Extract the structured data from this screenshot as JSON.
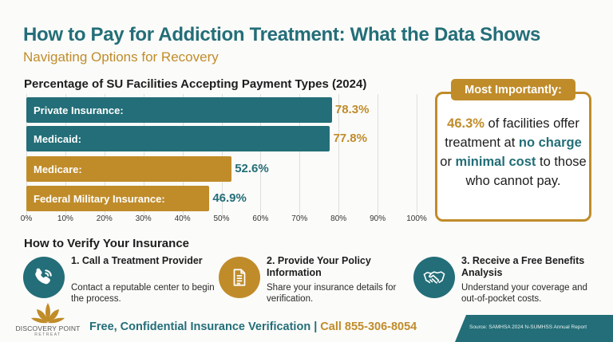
{
  "header": {
    "title": "How to Pay for Addiction Treatment: What the Data Shows",
    "subtitle": "Navigating Options for Recovery"
  },
  "chart_data": {
    "type": "bar",
    "orientation": "horizontal",
    "title": "Percentage of SU Facilities Accepting Payment Types (2024)",
    "categories": [
      "Private Insurance:",
      "Medicaid:",
      "Medicare:",
      "Federal Military Insurance:"
    ],
    "values": [
      78.3,
      77.8,
      52.6,
      46.9
    ],
    "value_labels": [
      "78.3%",
      "77.8%",
      "52.6%",
      "46.9%"
    ],
    "bar_colors": [
      "#236e78",
      "#236e78",
      "#c08c2a",
      "#c08c2a"
    ],
    "value_label_colors": [
      "#c08c2a",
      "#c08c2a",
      "#236e78",
      "#236e78"
    ],
    "xlabel": "",
    "ylabel": "",
    "xlim": [
      0,
      100
    ],
    "ticks": [
      "0%",
      "10%",
      "20%",
      "30%",
      "40%",
      "50%",
      "60%",
      "70%",
      "80%",
      "90%",
      "100%"
    ],
    "grid": true,
    "legend": null
  },
  "callout": {
    "badge": "Most Importantly:",
    "stat": "46.3%",
    "text_1": " of facilities offer treatment at ",
    "hl_1": "no charge",
    "text_2": " or ",
    "hl_2": "minimal cost",
    "text_3": " to those who cannot pay."
  },
  "verify": {
    "title": "How to Verify Your Insurance",
    "steps": [
      {
        "icon": "phone-icon",
        "title": "1. Call a Treatment Provider",
        "desc": "Contact a reputable center to begin the process."
      },
      {
        "icon": "document-icon",
        "title": "2. Provide Your Policy Information",
        "desc": "Share your insurance details for verification."
      },
      {
        "icon": "handshake-icon",
        "title": "3. Receive a Free Benefits Analysis",
        "desc": "Understand your coverage and out-of-pocket costs."
      }
    ]
  },
  "footer": {
    "logo_name": "DISCOVERY POINT",
    "logo_sub": "RETREAT",
    "cta_text": "Free, Confidential Insurance Verification | ",
    "cta_phone": "Call 855-306-8054",
    "source": "Source: SAMHSA 2024 N-SUMHSS Annual Report"
  },
  "colors": {
    "teal": "#236e78",
    "gold": "#c08c2a",
    "background": "#fbfbf9"
  }
}
